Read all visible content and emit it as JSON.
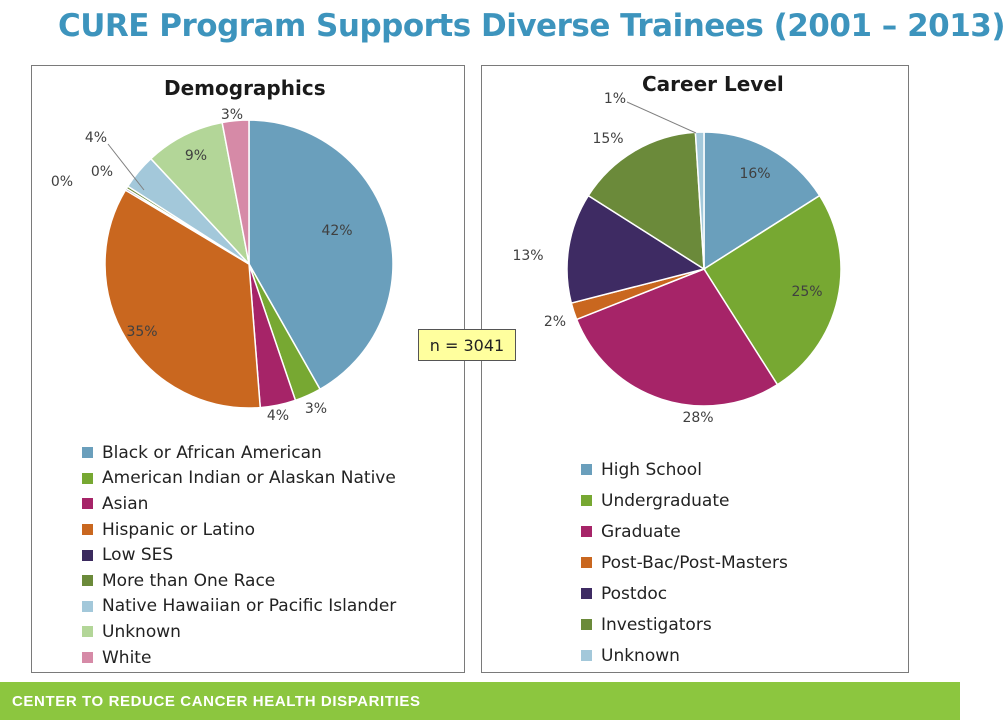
{
  "slide": {
    "title": "CURE Program Supports Diverse Trainees (2001 – 2013)",
    "sample_note": "n = 3041",
    "footer": "CENTER TO REDUCE CANCER HEALTH DISPARITIES",
    "colors": {
      "title": "#3d94bd",
      "footer": "#8cc63f",
      "note_bg": "#ffff9e"
    }
  },
  "chart_data": [
    {
      "type": "pie",
      "title": "Demographics",
      "legend_position": "bottom",
      "slices": [
        {
          "label": "Black or African American",
          "value": 42,
          "value_label": "42%",
          "color": "#6a9fbc"
        },
        {
          "label": "American Indian or Alaskan Native",
          "value": 3,
          "value_label": "3%",
          "color": "#77a832"
        },
        {
          "label": "Asian",
          "value": 4,
          "value_label": "4%",
          "color": "#a62468"
        },
        {
          "label": "Hispanic or Latino",
          "value": 35,
          "value_label": "35%",
          "color": "#c9671f"
        },
        {
          "label": "Low SES",
          "value": 0.2,
          "value_label": "0%",
          "color": "#3b2a5e"
        },
        {
          "label": "More than One Race",
          "value": 0.3,
          "value_label": "0%",
          "color": "#6b8a3a"
        },
        {
          "label": "Native Hawaiian or Pacific Islander",
          "value": 4,
          "value_label": "4%",
          "color": "#a3c8da"
        },
        {
          "label": "Unknown",
          "value": 9,
          "value_label": "9%",
          "color": "#b3d698"
        },
        {
          "label": "White",
          "value": 3,
          "value_label": "3%",
          "color": "#d68aa7"
        }
      ]
    },
    {
      "type": "pie",
      "title": "Career Level",
      "legend_position": "bottom",
      "slices": [
        {
          "label": "High School",
          "value": 16,
          "value_label": "16%",
          "color": "#6a9fbc"
        },
        {
          "label": "Undergraduate",
          "value": 25,
          "value_label": "25%",
          "color": "#77a832"
        },
        {
          "label": "Graduate",
          "value": 28,
          "value_label": "28%",
          "color": "#a62468"
        },
        {
          "label": "Post-Bac/Post-Masters",
          "value": 2,
          "value_label": "2%",
          "color": "#c9671f"
        },
        {
          "label": "Postdoc",
          "value": 13,
          "value_label": "13%",
          "color": "#3e2b63"
        },
        {
          "label": "Investigators",
          "value": 15,
          "value_label": "15%",
          "color": "#6b8a3a"
        },
        {
          "label": "Unknown",
          "value": 1,
          "value_label": "1%",
          "color": "#a3c8da"
        }
      ]
    }
  ]
}
